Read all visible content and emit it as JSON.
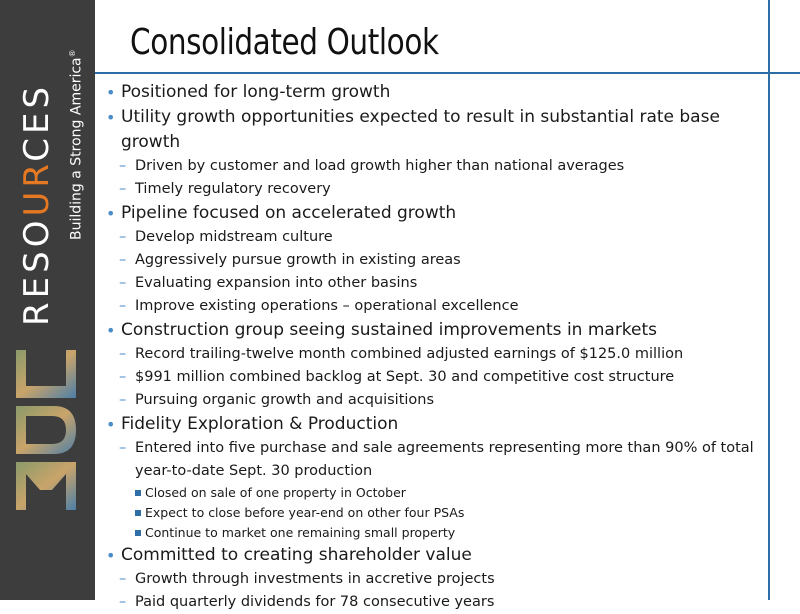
{
  "brand": {
    "word_pre": "RESO",
    "word_accent": "UR",
    "word_post": "CES",
    "mark": "MDU",
    "tagline": "Building a Strong America",
    "registered": "®",
    "accent_color": "#e57822"
  },
  "slide": {
    "title": "Consolidated Outlook",
    "accent_color": "#2e6ea6",
    "sections": [
      {
        "text": "Positioned for long-term growth",
        "items": []
      },
      {
        "text": "Utility growth opportunities expected to result in substantial rate base growth",
        "items": [
          {
            "text": "Driven by customer and load growth higher than national averages"
          },
          {
            "text": "Timely regulatory recovery"
          }
        ]
      },
      {
        "text": "Pipeline focused on accelerated growth",
        "items": [
          {
            "text": "Develop midstream culture"
          },
          {
            "text": "Aggressively pursue growth in existing areas"
          },
          {
            "text": "Evaluating expansion into other basins"
          },
          {
            "text": "Improve existing operations – operational excellence"
          }
        ]
      },
      {
        "text": "Construction group seeing sustained improvements in markets",
        "items": [
          {
            "text": "Record trailing-twelve month combined adjusted earnings of $125.0 million"
          },
          {
            "text": "$991 million combined backlog at Sept. 30 and competitive cost structure"
          },
          {
            "text": "Pursuing organic growth and acquisitions"
          }
        ]
      },
      {
        "text": "Fidelity Exploration & Production",
        "items": [
          {
            "text": "Entered into five purchase and sale agreements representing more than 90% of total year-to-date Sept. 30 production",
            "subitems": [
              "Closed on sale of one property in October",
              "Expect to close before year-end on other four PSAs",
              "Continue to market one remaining small property"
            ]
          }
        ]
      },
      {
        "text": "Committed to creating shareholder value",
        "items": [
          {
            "text": "Growth through investments in accretive projects"
          },
          {
            "text": "Paid quarterly dividends for 78 consecutive years"
          }
        ]
      }
    ]
  }
}
